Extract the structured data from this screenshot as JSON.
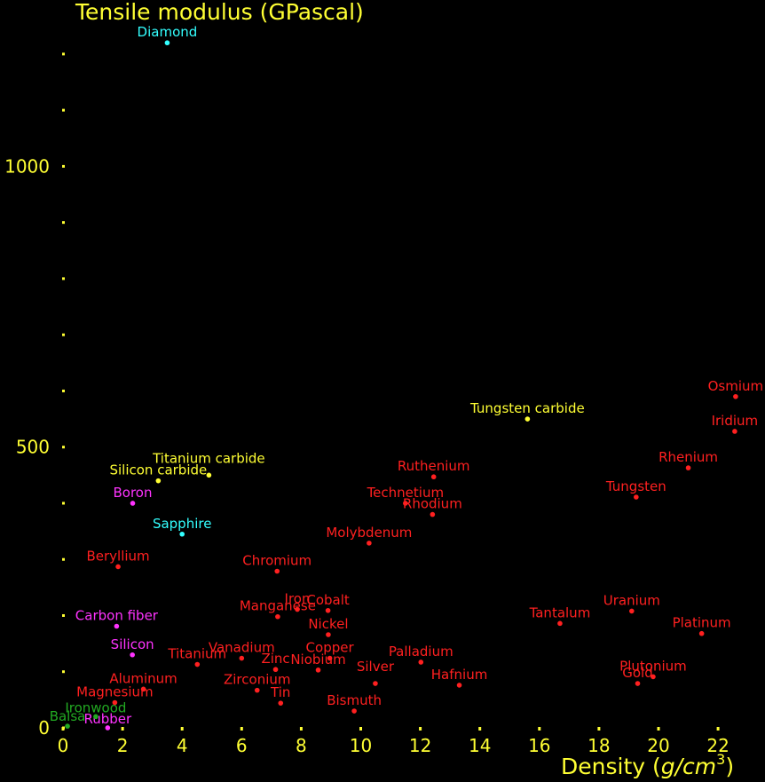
{
  "chart_data": {
    "type": "scatter",
    "title": "",
    "ylabel": "Tensile modulus (GPascal)",
    "xlabel_main": "Density (",
    "xlabel_italic": "g/cm",
    "xlabel_sup": "3",
    "xlabel_end": ")",
    "xlim": [
      0,
      23.5
    ],
    "ylim": [
      0,
      1220
    ],
    "x_ticks": [
      0,
      2,
      4,
      6,
      8,
      10,
      12,
      14,
      16,
      18,
      20,
      22
    ],
    "y_ticks": [
      0,
      500,
      1000
    ],
    "y_minor_ticks": [
      100,
      200,
      300,
      400,
      600,
      700,
      800,
      900,
      1100,
      1200
    ],
    "grid": false,
    "colors": {
      "background": "#000000",
      "axis": "#ffff33",
      "metal": "#ff2020",
      "ceramic": "#ffff33",
      "element": "#ff33ff",
      "crystal": "#33ffff",
      "organic": "#22aa22"
    },
    "points": [
      {
        "name": "Diamond",
        "x": 3.5,
        "y": 1220,
        "group": "crystal",
        "anchor": "middle",
        "dy": -7
      },
      {
        "name": "Sapphire",
        "x": 4.0,
        "y": 345,
        "group": "crystal",
        "anchor": "middle",
        "dy": -7
      },
      {
        "name": "Tungsten carbide",
        "x": 15.6,
        "y": 550,
        "group": "ceramic",
        "anchor": "middle",
        "dy": -7
      },
      {
        "name": "Titanium carbide",
        "x": 4.9,
        "y": 450,
        "group": "ceramic",
        "anchor": "middle",
        "dy": -14
      },
      {
        "name": "Silicon carbide",
        "x": 3.2,
        "y": 440,
        "group": "ceramic",
        "anchor": "middle",
        "dy": -7
      },
      {
        "name": "Boron",
        "x": 2.34,
        "y": 400,
        "group": "element",
        "anchor": "middle",
        "dy": -7
      },
      {
        "name": "Carbon fiber",
        "x": 1.8,
        "y": 181,
        "group": "element",
        "anchor": "middle",
        "dy": -7
      },
      {
        "name": "Silicon",
        "x": 2.33,
        "y": 130,
        "group": "element",
        "anchor": "middle",
        "dy": -7
      },
      {
        "name": "Rubber",
        "x": 1.5,
        "y": 0.05,
        "group": "element",
        "anchor": "middle",
        "dy": -5
      },
      {
        "name": "Balsa",
        "x": 0.15,
        "y": 3,
        "group": "organic",
        "anchor": "middle",
        "dy": -6
      },
      {
        "name": "Ironwood",
        "x": 1.1,
        "y": 20,
        "group": "organic",
        "anchor": "middle",
        "dy": -5
      },
      {
        "name": "Osmium",
        "x": 22.59,
        "y": 590,
        "group": "metal",
        "anchor": "middle",
        "dy": -7
      },
      {
        "name": "Iridium",
        "x": 22.56,
        "y": 528,
        "group": "metal",
        "anchor": "middle",
        "dy": -7
      },
      {
        "name": "Rhenium",
        "x": 21.0,
        "y": 463,
        "group": "metal",
        "anchor": "middle",
        "dy": -7
      },
      {
        "name": "Tungsten",
        "x": 19.25,
        "y": 411,
        "group": "metal",
        "anchor": "middle",
        "dy": -7
      },
      {
        "name": "Ruthenium",
        "x": 12.45,
        "y": 447,
        "group": "metal",
        "anchor": "middle",
        "dy": -7
      },
      {
        "name": "Technetium",
        "x": 11.5,
        "y": 400,
        "group": "metal",
        "anchor": "middle",
        "dy": -7
      },
      {
        "name": "Rhodium",
        "x": 12.41,
        "y": 380,
        "group": "metal",
        "anchor": "middle",
        "dy": -7
      },
      {
        "name": "Molybdenum",
        "x": 10.28,
        "y": 329,
        "group": "metal",
        "anchor": "middle",
        "dy": -7
      },
      {
        "name": "Beryllium",
        "x": 1.85,
        "y": 287,
        "group": "metal",
        "anchor": "middle",
        "dy": -7
      },
      {
        "name": "Chromium",
        "x": 7.19,
        "y": 279,
        "group": "metal",
        "anchor": "middle",
        "dy": -7
      },
      {
        "name": "Iron",
        "x": 7.87,
        "y": 211,
        "group": "metal",
        "anchor": "middle",
        "dy": -7
      },
      {
        "name": "Cobalt",
        "x": 8.9,
        "y": 209,
        "group": "metal",
        "anchor": "middle",
        "dy": -7
      },
      {
        "name": "Manganese",
        "x": 7.21,
        "y": 198,
        "group": "metal",
        "anchor": "middle",
        "dy": -7
      },
      {
        "name": "Nickel",
        "x": 8.91,
        "y": 166,
        "group": "metal",
        "anchor": "middle",
        "dy": -7
      },
      {
        "name": "Uranium",
        "x": 19.1,
        "y": 208,
        "group": "metal",
        "anchor": "middle",
        "dy": -7
      },
      {
        "name": "Tantalum",
        "x": 16.69,
        "y": 186,
        "group": "metal",
        "anchor": "middle",
        "dy": -7
      },
      {
        "name": "Platinum",
        "x": 21.45,
        "y": 168,
        "group": "metal",
        "anchor": "middle",
        "dy": -7
      },
      {
        "name": "Copper",
        "x": 8.96,
        "y": 124,
        "group": "metal",
        "anchor": "middle",
        "dy": -7
      },
      {
        "name": "Vanadium",
        "x": 6.0,
        "y": 124,
        "group": "metal",
        "anchor": "middle",
        "dy": -7
      },
      {
        "name": "Titanium",
        "x": 4.51,
        "y": 113,
        "group": "metal",
        "anchor": "middle",
        "dy": -7
      },
      {
        "name": "Zinc",
        "x": 7.14,
        "y": 104,
        "group": "metal",
        "anchor": "middle",
        "dy": -7
      },
      {
        "name": "Niobium",
        "x": 8.57,
        "y": 103,
        "group": "metal",
        "anchor": "middle",
        "dy": -7
      },
      {
        "name": "Palladium",
        "x": 12.02,
        "y": 117,
        "group": "metal",
        "anchor": "middle",
        "dy": -7
      },
      {
        "name": "Silver",
        "x": 10.49,
        "y": 79,
        "group": "metal",
        "anchor": "middle",
        "dy": -14
      },
      {
        "name": "Hafnium",
        "x": 13.31,
        "y": 76,
        "group": "metal",
        "anchor": "middle",
        "dy": -7
      },
      {
        "name": "Plutonium",
        "x": 19.82,
        "y": 91,
        "group": "metal",
        "anchor": "middle",
        "dy": -7
      },
      {
        "name": "Gold",
        "x": 19.3,
        "y": 79,
        "group": "metal",
        "anchor": "middle",
        "dy": -7
      },
      {
        "name": "Aluminum",
        "x": 2.7,
        "y": 69,
        "group": "metal",
        "anchor": "middle",
        "dy": -7
      },
      {
        "name": "Zirconium",
        "x": 6.52,
        "y": 67,
        "group": "metal",
        "anchor": "middle",
        "dy": -7
      },
      {
        "name": "Magnesium",
        "x": 1.74,
        "y": 45,
        "group": "metal",
        "anchor": "middle",
        "dy": -7
      },
      {
        "name": "Tin",
        "x": 7.31,
        "y": 44,
        "group": "metal",
        "anchor": "middle",
        "dy": -7
      },
      {
        "name": "Bismuth",
        "x": 9.78,
        "y": 30,
        "group": "metal",
        "anchor": "middle",
        "dy": -7
      }
    ]
  }
}
